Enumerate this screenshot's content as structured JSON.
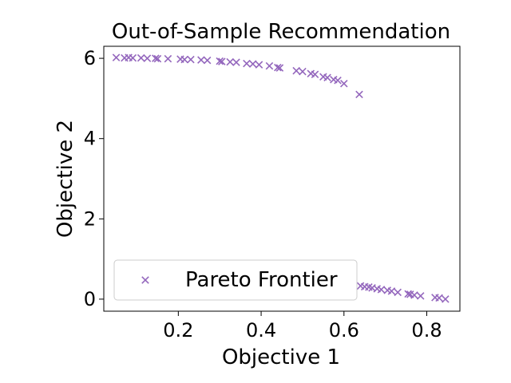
{
  "chart_data": {
    "type": "scatter",
    "title": "Out-of-Sample Recommendation",
    "xlabel": "Objective 1",
    "ylabel": "Objective 2",
    "xlim": [
      0.02,
      0.88
    ],
    "ylim": [
      -0.3,
      6.3
    ],
    "xticks": [
      0.2,
      0.4,
      0.6,
      0.8
    ],
    "xtick_labels": [
      "0.2",
      "0.4",
      "0.6",
      "0.8"
    ],
    "yticks": [
      0,
      2,
      4,
      6
    ],
    "ytick_labels": [
      "0",
      "2",
      "4",
      "6"
    ],
    "grid": false,
    "legend_position": "lower-left",
    "marker": "x",
    "series": [
      {
        "name": "Pareto Frontier",
        "color": "#9467bd",
        "points": [
          [
            0.05,
            6.02
          ],
          [
            0.07,
            6.01
          ],
          [
            0.08,
            6.02
          ],
          [
            0.09,
            6.01
          ],
          [
            0.11,
            6.01
          ],
          [
            0.125,
            6.0
          ],
          [
            0.145,
            6.0
          ],
          [
            0.15,
            5.99
          ],
          [
            0.175,
            5.99
          ],
          [
            0.205,
            5.98
          ],
          [
            0.215,
            5.97
          ],
          [
            0.23,
            5.97
          ],
          [
            0.255,
            5.96
          ],
          [
            0.27,
            5.95
          ],
          [
            0.3,
            5.93
          ],
          [
            0.305,
            5.92
          ],
          [
            0.325,
            5.91
          ],
          [
            0.34,
            5.9
          ],
          [
            0.365,
            5.87
          ],
          [
            0.38,
            5.86
          ],
          [
            0.395,
            5.84
          ],
          [
            0.42,
            5.81
          ],
          [
            0.44,
            5.77
          ],
          [
            0.445,
            5.76
          ],
          [
            0.485,
            5.69
          ],
          [
            0.5,
            5.67
          ],
          [
            0.52,
            5.62
          ],
          [
            0.53,
            5.6
          ],
          [
            0.55,
            5.54
          ],
          [
            0.56,
            5.52
          ],
          [
            0.575,
            5.47
          ],
          [
            0.585,
            5.45
          ],
          [
            0.6,
            5.37
          ],
          [
            0.637,
            5.1
          ],
          [
            0.64,
            0.33
          ],
          [
            0.65,
            0.31
          ],
          [
            0.66,
            0.3
          ],
          [
            0.668,
            0.28
          ],
          [
            0.68,
            0.26
          ],
          [
            0.69,
            0.24
          ],
          [
            0.705,
            0.22
          ],
          [
            0.715,
            0.2
          ],
          [
            0.73,
            0.17
          ],
          [
            0.755,
            0.13
          ],
          [
            0.76,
            0.12
          ],
          [
            0.77,
            0.1
          ],
          [
            0.785,
            0.08
          ],
          [
            0.82,
            0.04
          ],
          [
            0.83,
            0.03
          ],
          [
            0.845,
            0.0
          ]
        ]
      }
    ]
  }
}
